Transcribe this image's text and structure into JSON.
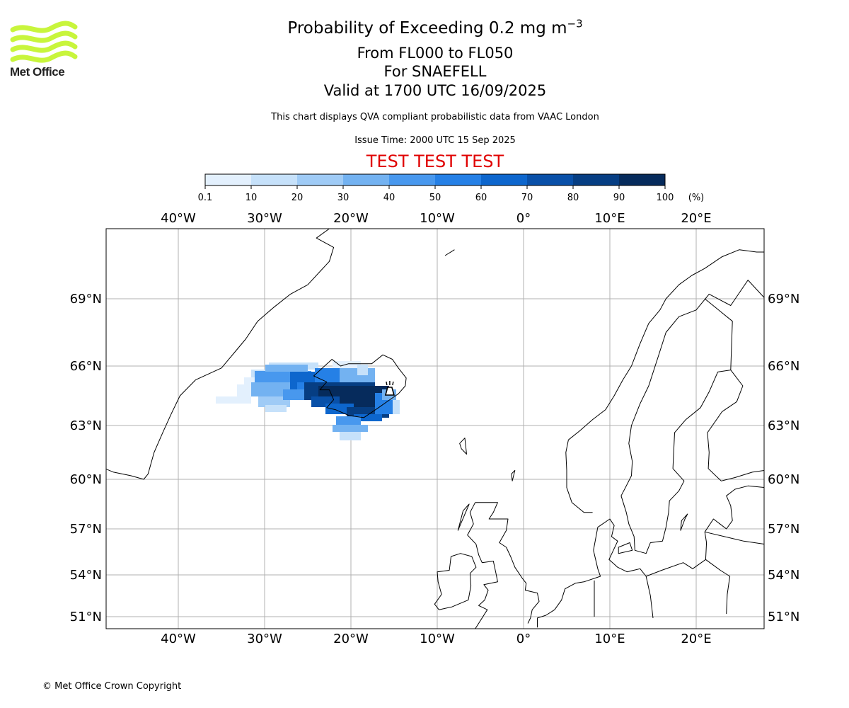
{
  "header": {
    "title_main": "Probability of Exceeding 0.2 mg m",
    "title_superscript": "−3",
    "range_line": "From FL000 to FL050",
    "volcano_line": "For SNAEFELL",
    "valid_line": "Valid at 1700 UTC 16/09/2025",
    "note": "This chart displays QVA compliant probabilistic data from VAAC London",
    "issue_time": "Issue Time: 2000 UTC 15 Sep 2025",
    "test_banner": "TEST TEST TEST"
  },
  "logo": {
    "text": "Met Office",
    "color": "#c8f53c"
  },
  "colorbar": {
    "ticks": [
      "0.1",
      "10",
      "20",
      "30",
      "40",
      "50",
      "60",
      "70",
      "80",
      "90",
      "100"
    ],
    "unit": "(%)",
    "colors": [
      "#e3f0fd",
      "#c6e1fa",
      "#9fcbf6",
      "#73b2f1",
      "#4898ee",
      "#2580e6",
      "#0d66cd",
      "#0950a8",
      "#063e83",
      "#062b5c"
    ]
  },
  "map": {
    "lon_labels": [
      "40°W",
      "30°W",
      "20°W",
      "10°W",
      "0°",
      "10°E",
      "20°E"
    ],
    "lat_labels": [
      "69°N",
      "66°N",
      "63°N",
      "60°N",
      "57°N",
      "54°N",
      "51°N"
    ],
    "volcano_name": "SNAEFELL"
  },
  "footer": {
    "copyright": "© Met Office Crown Copyright"
  }
}
